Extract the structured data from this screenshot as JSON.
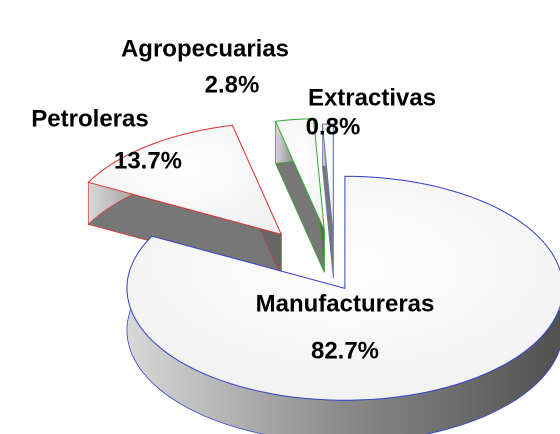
{
  "chart_data": {
    "type": "pie",
    "categories": [
      "Manufactureras",
      "Petroleras",
      "Agropecuarias",
      "Extractivas"
    ],
    "values": [
      82.7,
      13.7,
      2.8,
      0.8
    ],
    "value_labels": [
      "82.7%",
      "13.7%",
      "2.8%",
      "0.8%"
    ],
    "colors": [
      "#3344cc",
      "#dd3333",
      "#33aa33",
      "#6677aa"
    ]
  }
}
